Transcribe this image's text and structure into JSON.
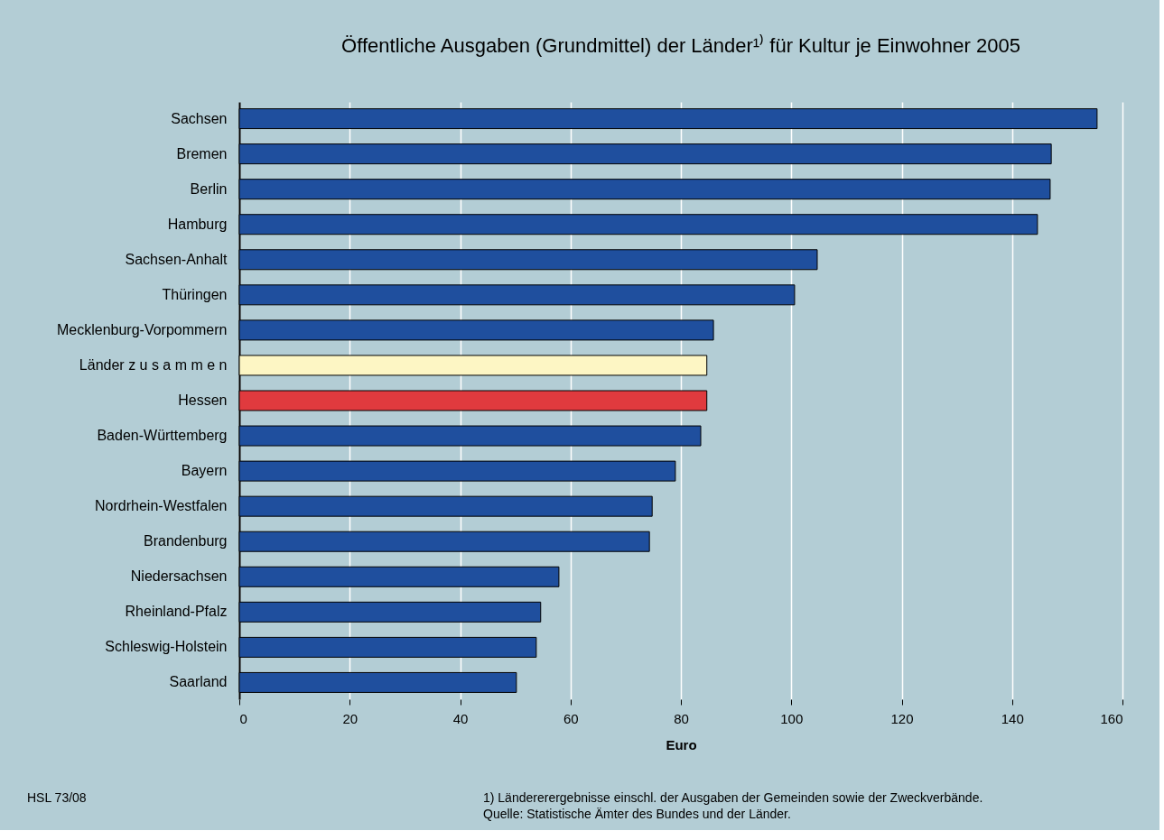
{
  "chart_data": {
    "type": "bar",
    "orientation": "horizontal",
    "title": "Öffentliche Ausgaben (Grundmittel) der Länder¹⁾ für Kultur je Einwohner 2005",
    "xlabel": "Euro",
    "categories": [
      "Sachsen",
      "Bremen",
      "Berlin",
      "Hamburg",
      "Sachsen-Anhalt",
      "Thüringen",
      "Mecklenburg-Vorpommern",
      "Länder z u s a m m e n",
      "Hessen",
      "Baden-Württemberg",
      "Bayern",
      "Nordrhein-Westfalen",
      "Brandenburg",
      "Niedersachsen",
      "Rheinland-Pfalz",
      "Schleswig-Holstein",
      "Saarland"
    ],
    "values": [
      155.4,
      147.1,
      146.9,
      144.6,
      104.7,
      100.6,
      85.9,
      84.7,
      84.7,
      83.6,
      79.0,
      74.8,
      74.3,
      57.9,
      54.6,
      53.8,
      50.2
    ],
    "colors": [
      "#1f4f9e",
      "#1f4f9e",
      "#1f4f9e",
      "#1f4f9e",
      "#1f4f9e",
      "#1f4f9e",
      "#1f4f9e",
      "#fdf6c4",
      "#e03a3e",
      "#1f4f9e",
      "#1f4f9e",
      "#1f4f9e",
      "#1f4f9e",
      "#1f4f9e",
      "#1f4f9e",
      "#1f4f9e",
      "#1f4f9e"
    ],
    "xlim": [
      0,
      160
    ],
    "xticks": [
      0,
      20,
      40,
      60,
      80,
      100,
      120,
      140,
      160
    ],
    "grid": "x",
    "annotations": [
      "HSL 73/08",
      "1) Ländererergebnisse einschl. der Ausgaben der Gemeinden sowie der Zweckverbände.",
      "Quelle: Statistische Ämter des Bundes und der Länder."
    ]
  }
}
